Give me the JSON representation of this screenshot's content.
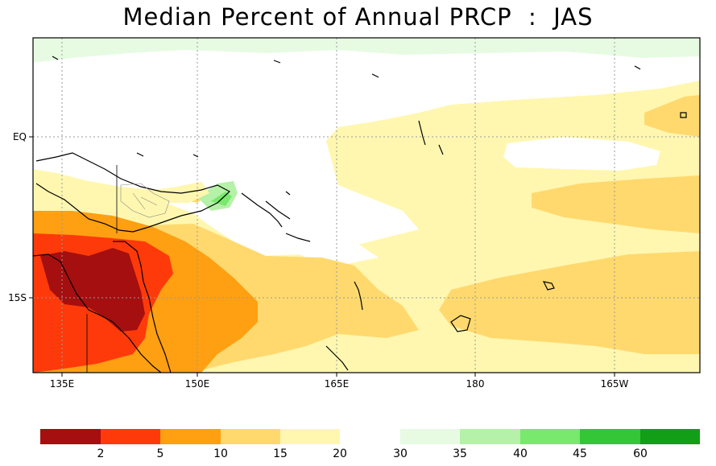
{
  "title": "Median Percent of Annual PRCP  :  JAS",
  "map": {
    "lon_labels": [
      "135E",
      "150E",
      "165E",
      "180",
      "165W"
    ],
    "lat_labels": [
      "EQ",
      "15S"
    ]
  },
  "legend": {
    "labels": [
      "2",
      "5",
      "10",
      "15",
      "20",
      "30",
      "35",
      "40",
      "45",
      "60"
    ],
    "colors_low": [
      "#a50f0f",
      "#ff3a0a",
      "#ff9f12",
      "#ffd96e",
      "#fff7b0"
    ],
    "colors_high": [
      "#e7fbe3",
      "#b5f1a8",
      "#78e96d",
      "#34c637",
      "#129e16"
    ]
  },
  "colors": {
    "very_low": "#a50f0f",
    "low": "#ff3a0a",
    "mid_low": "#ff9f12",
    "below": "#ffd96e",
    "near": "#fff7b0",
    "normal": "#ffffff",
    "above": "#e7fbe3",
    "high": "#b5f1a8",
    "higher": "#78e96d"
  }
}
